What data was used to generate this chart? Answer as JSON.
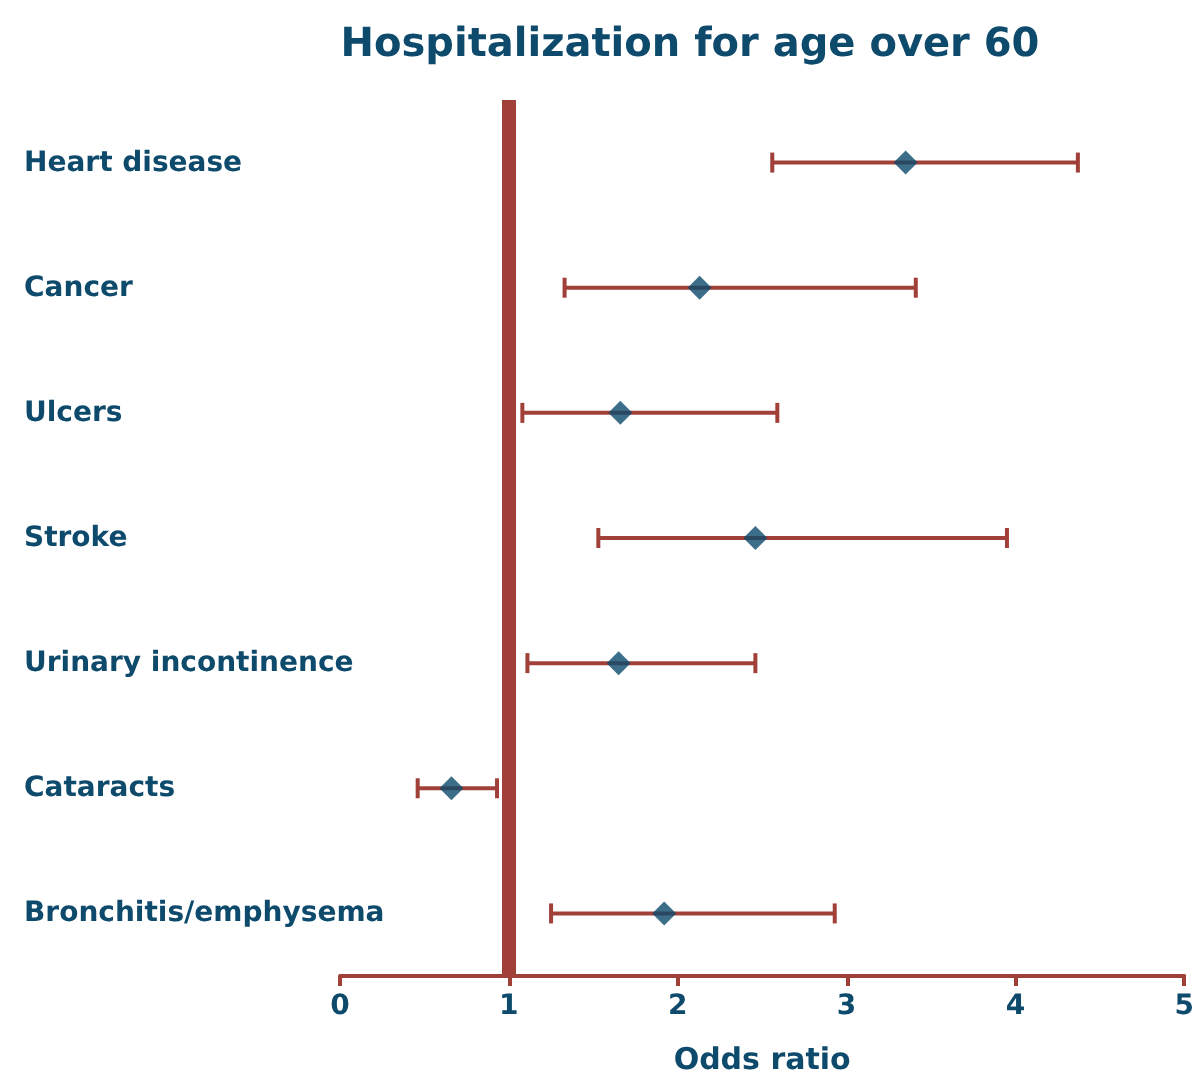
{
  "chart_data": {
    "type": "scatter",
    "orientation": "horizontal",
    "title": "Hospitalization for age over 60",
    "xlabel": "Odds ratio",
    "categories": [
      "Heart disease",
      "Cancer",
      "Ulcers",
      "Stroke",
      "Urinary incontinence",
      "Cataracts",
      "Bronchitis/emphysema"
    ],
    "values": [
      3.35,
      2.13,
      1.66,
      2.46,
      1.65,
      0.66,
      1.92
    ],
    "errors": [
      [
        2.56,
        4.37
      ],
      [
        1.33,
        3.41
      ],
      [
        1.08,
        2.59
      ],
      [
        1.53,
        3.95
      ],
      [
        1.11,
        2.46
      ],
      [
        0.46,
        0.93
      ],
      [
        1.25,
        2.93
      ]
    ],
    "color": "#0d4a6b",
    "marker": "diamond",
    "xlim": [
      0,
      5
    ],
    "xticks": [
      0,
      1,
      2,
      3,
      4,
      5
    ],
    "grid": false,
    "ref_lines": [
      {
        "axis": "x",
        "value": 1,
        "color": "#a04038"
      }
    ]
  }
}
